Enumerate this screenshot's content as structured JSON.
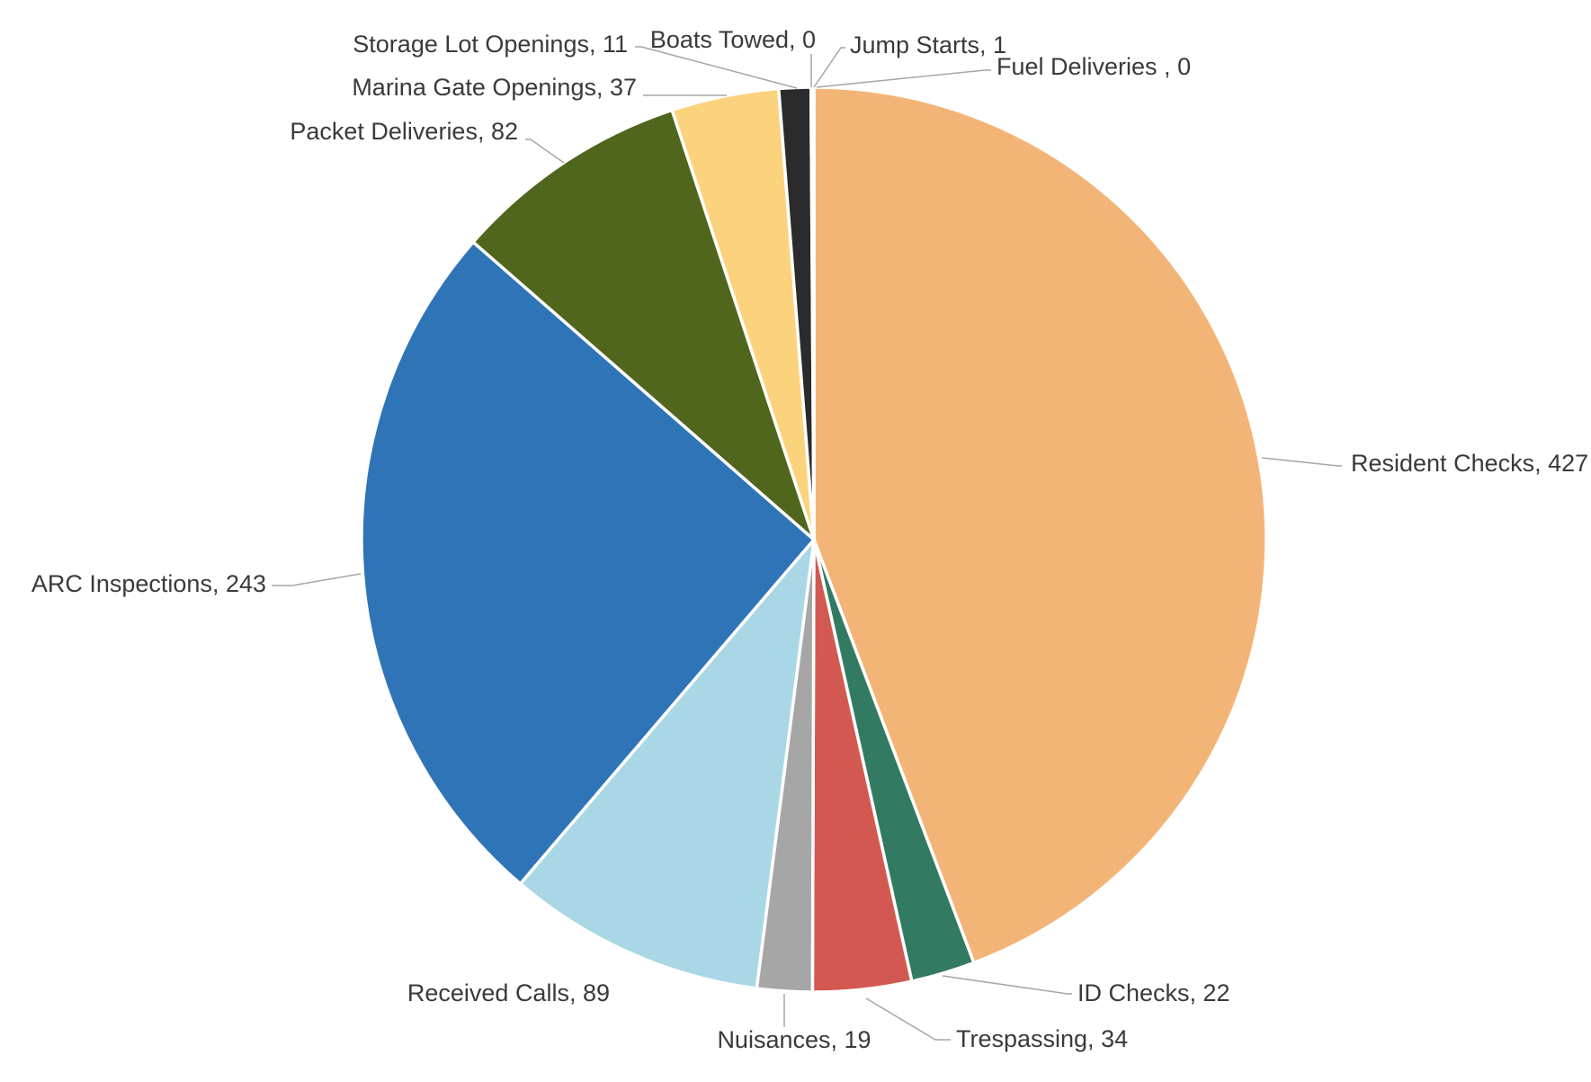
{
  "chart_data": {
    "type": "pie",
    "title": "",
    "start": "12 o'clock, clockwise",
    "slices": [
      {
        "label": "Resident Checks, 427",
        "name": "Resident Checks",
        "value": 427,
        "color": "#F3B577"
      },
      {
        "label": "ID Checks, 22",
        "name": "ID Checks",
        "value": 22,
        "color": "#327B62"
      },
      {
        "label": "Trespassing, 34",
        "name": "Trespassing",
        "value": 34,
        "color": "#D45852"
      },
      {
        "label": "Nuisances, 19",
        "name": "Nuisances",
        "value": 19,
        "color": "#A6A6A6"
      },
      {
        "label": "Received Calls, 89",
        "name": "Received Calls",
        "value": 89,
        "color": "#A9D7E5"
      },
      {
        "label": "ARC Inspections, 243",
        "name": "ARC Inspections",
        "value": 243,
        "color": "#3074B8"
      },
      {
        "label": "Packet Deliveries, 82",
        "name": "Packet Deliveries",
        "value": 82,
        "color": "#4F661C"
      },
      {
        "label": "Marina Gate Openings, 37",
        "name": "Marina Gate Openings",
        "value": 37,
        "color": "#FCD37D"
      },
      {
        "label": "Storage Lot Openings, 11",
        "name": "Storage Lot Openings",
        "value": 11,
        "color": "#2B2B2B"
      },
      {
        "label": "Boats Towed, 0",
        "name": "Boats Towed",
        "value": 0,
        "color": "#7F7F7F"
      },
      {
        "label": "Jump Starts, 1",
        "name": "Jump Starts",
        "value": 1,
        "color": "#4A6FA5"
      },
      {
        "label": "Fuel Deliveries , 0",
        "name": "Fuel Deliveries ",
        "value": 0,
        "color": "#C55A11"
      }
    ]
  }
}
